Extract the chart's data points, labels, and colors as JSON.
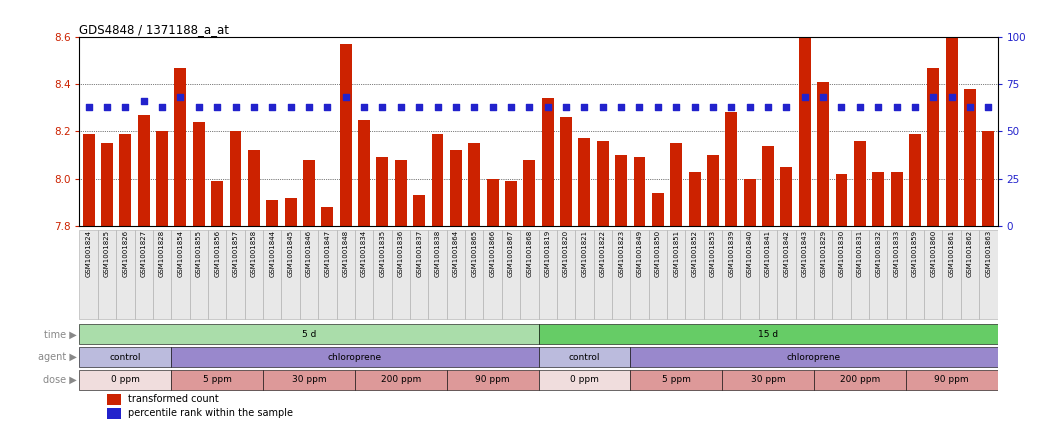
{
  "title": "GDS4848 / 1371188_a_at",
  "samples": [
    "GSM1001824",
    "GSM1001825",
    "GSM1001826",
    "GSM1001827",
    "GSM1001828",
    "GSM1001854",
    "GSM1001855",
    "GSM1001856",
    "GSM1001857",
    "GSM1001858",
    "GSM1001844",
    "GSM1001845",
    "GSM1001846",
    "GSM1001847",
    "GSM1001848",
    "GSM1001834",
    "GSM1001835",
    "GSM1001836",
    "GSM1001837",
    "GSM1001838",
    "GSM1001864",
    "GSM1001865",
    "GSM1001866",
    "GSM1001867",
    "GSM1001868",
    "GSM1001819",
    "GSM1001820",
    "GSM1001821",
    "GSM1001822",
    "GSM1001823",
    "GSM1001849",
    "GSM1001850",
    "GSM1001851",
    "GSM1001852",
    "GSM1001853",
    "GSM1001839",
    "GSM1001840",
    "GSM1001841",
    "GSM1001842",
    "GSM1001843",
    "GSM1001829",
    "GSM1001830",
    "GSM1001831",
    "GSM1001832",
    "GSM1001833",
    "GSM1001859",
    "GSM1001860",
    "GSM1001861",
    "GSM1001862",
    "GSM1001863"
  ],
  "bar_values": [
    8.19,
    8.15,
    8.19,
    8.27,
    8.2,
    8.47,
    8.24,
    7.99,
    8.2,
    8.12,
    7.91,
    7.92,
    8.08,
    7.88,
    8.57,
    8.25,
    8.09,
    8.08,
    7.93,
    8.19,
    8.12,
    8.15,
    8.0,
    7.99,
    8.08,
    8.34,
    8.26,
    8.17,
    8.16,
    8.1,
    8.09,
    7.94,
    8.15,
    8.03,
    8.1,
    8.28,
    8.0,
    8.14,
    8.05,
    8.72,
    8.41,
    8.02,
    8.16,
    8.03,
    8.03,
    8.19,
    8.47,
    8.69,
    8.38,
    8.2
  ],
  "percentile_values": [
    63,
    63,
    63,
    66,
    63,
    68,
    63,
    63,
    63,
    63,
    63,
    63,
    63,
    63,
    68,
    63,
    63,
    63,
    63,
    63,
    63,
    63,
    63,
    63,
    63,
    63,
    63,
    63,
    63,
    63,
    63,
    63,
    63,
    63,
    63,
    63,
    63,
    63,
    63,
    68,
    68,
    63,
    63,
    63,
    63,
    63,
    68,
    68,
    63,
    63
  ],
  "ylim_left": [
    7.8,
    8.6
  ],
  "ylim_right": [
    0,
    100
  ],
  "yticks_left": [
    7.8,
    8.0,
    8.2,
    8.4,
    8.6
  ],
  "yticks_right": [
    0,
    25,
    50,
    75,
    100
  ],
  "bar_color": "#cc2200",
  "dot_color": "#2222cc",
  "bar_bottom": 7.8,
  "time_groups": [
    {
      "label": "5 d",
      "start": 0,
      "end": 25,
      "color": "#aaddaa"
    },
    {
      "label": "15 d",
      "start": 25,
      "end": 50,
      "color": "#66cc66"
    }
  ],
  "agent_groups": [
    {
      "label": "control",
      "start": 0,
      "end": 5,
      "color": "#bbbbdd"
    },
    {
      "label": "chloroprene",
      "start": 5,
      "end": 25,
      "color": "#9988cc"
    },
    {
      "label": "control",
      "start": 25,
      "end": 30,
      "color": "#bbbbdd"
    },
    {
      "label": "chloroprene",
      "start": 30,
      "end": 50,
      "color": "#9988cc"
    }
  ],
  "dose_groups": [
    {
      "label": "0 ppm",
      "start": 0,
      "end": 5,
      "color": "#f0dddd"
    },
    {
      "label": "5 ppm",
      "start": 5,
      "end": 10,
      "color": "#dd9999"
    },
    {
      "label": "30 ppm",
      "start": 10,
      "end": 15,
      "color": "#dd9999"
    },
    {
      "label": "200 ppm",
      "start": 15,
      "end": 20,
      "color": "#dd9999"
    },
    {
      "label": "90 ppm",
      "start": 20,
      "end": 25,
      "color": "#dd9999"
    },
    {
      "label": "0 ppm",
      "start": 25,
      "end": 30,
      "color": "#f0dddd"
    },
    {
      "label": "5 ppm",
      "start": 30,
      "end": 35,
      "color": "#dd9999"
    },
    {
      "label": "30 ppm",
      "start": 35,
      "end": 40,
      "color": "#dd9999"
    },
    {
      "label": "200 ppm",
      "start": 40,
      "end": 45,
      "color": "#dd9999"
    },
    {
      "label": "90 ppm",
      "start": 45,
      "end": 50,
      "color": "#dd9999"
    }
  ],
  "legend_items": [
    {
      "label": "transformed count",
      "color": "#cc2200"
    },
    {
      "label": "percentile rank within the sample",
      "color": "#2222cc"
    }
  ],
  "row_label_color": "#888888",
  "xtick_bg_color": "#e8e8e8",
  "xtick_border_color": "#aaaaaa"
}
